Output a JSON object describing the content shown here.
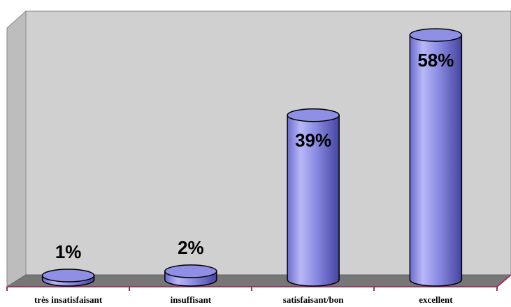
{
  "chart_data": {
    "type": "bar",
    "style": "3d-cylinder",
    "categories": [
      "très insatisfaisant",
      "insuffisant",
      "satisfaisant/bon",
      "excellent"
    ],
    "values": [
      1,
      2,
      39,
      58
    ],
    "data_labels": [
      "1%",
      "2%",
      "39%",
      "58%"
    ],
    "ylim": [
      0,
      60
    ],
    "grid": false,
    "legend": "none"
  },
  "colors": {
    "bar_top": "#8f8fe6",
    "bar_side_dark": "#4a4aa8",
    "bar_side_light": "#b6b6f5",
    "back_wall": "#cfcfcf",
    "side_wall": "#bcbcbc",
    "floor": "#7a7a7a",
    "axis": "#993366"
  }
}
